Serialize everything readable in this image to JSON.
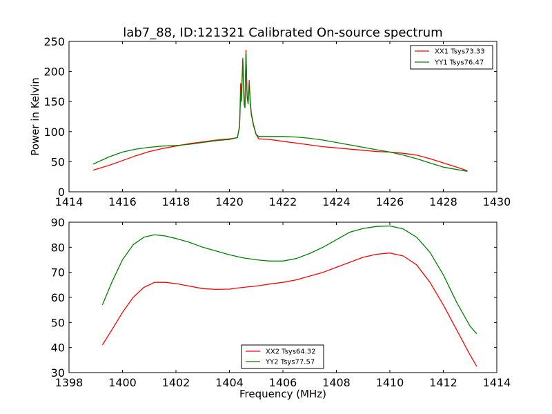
{
  "chart_data": [
    {
      "type": "line",
      "title": "lab7_88, ID:121321 Calibrated On-source spectrum",
      "xlabel": "",
      "ylabel": "Power in Kelvin",
      "xlim": [
        1414,
        1430
      ],
      "ylim": [
        0,
        250
      ],
      "xticks": [
        "1414",
        "1416",
        "1418",
        "1420",
        "1422",
        "1424",
        "1426",
        "1428",
        "1430"
      ],
      "yticks": [
        "0",
        "50",
        "100",
        "150",
        "200",
        "250"
      ],
      "legend": "top-right",
      "series": [
        {
          "name": "XX1 Tsys73.33",
          "color": "#ff0000",
          "x": [
            1414.9,
            1415.5,
            1416.0,
            1416.5,
            1417.0,
            1417.5,
            1418.0,
            1418.5,
            1419.0,
            1419.5,
            1420.0,
            1420.3,
            1420.38,
            1420.42,
            1420.45,
            1420.5,
            1420.55,
            1420.58,
            1420.62,
            1420.66,
            1420.7,
            1420.74,
            1420.78,
            1420.82,
            1420.9,
            1421.0,
            1421.1,
            1421.5,
            1422.0,
            1422.5,
            1423.0,
            1423.5,
            1424.0,
            1424.5,
            1425.0,
            1425.5,
            1426.0,
            1426.5,
            1427.0,
            1427.5,
            1428.0,
            1428.5,
            1428.9
          ],
          "y": [
            36,
            44,
            52,
            60,
            67,
            72,
            76,
            80,
            83,
            86,
            88,
            90,
            110,
            180,
            160,
            222,
            150,
            140,
            235,
            160,
            148,
            185,
            150,
            130,
            112,
            95,
            88,
            87,
            84,
            81,
            78,
            75,
            73,
            71,
            69,
            67,
            66,
            64,
            61,
            55,
            48,
            41,
            35
          ]
        },
        {
          "name": "YY1 Tsys76.47",
          "color": "#008000",
          "x": [
            1414.9,
            1415.5,
            1416.0,
            1416.5,
            1417.0,
            1417.5,
            1418.0,
            1418.5,
            1419.0,
            1419.5,
            1420.0,
            1420.3,
            1420.38,
            1420.42,
            1420.45,
            1420.5,
            1420.55,
            1420.58,
            1420.62,
            1420.66,
            1420.7,
            1420.74,
            1420.78,
            1420.82,
            1420.9,
            1421.0,
            1421.1,
            1421.5,
            1422.0,
            1422.5,
            1423.0,
            1423.5,
            1424.0,
            1424.5,
            1425.0,
            1425.5,
            1426.0,
            1426.5,
            1427.0,
            1427.5,
            1428.0,
            1428.5,
            1428.9
          ],
          "y": [
            46,
            58,
            66,
            71,
            74,
            76,
            77,
            79,
            82,
            85,
            87,
            90,
            108,
            165,
            150,
            218,
            145,
            140,
            230,
            158,
            146,
            180,
            145,
            128,
            110,
            95,
            92,
            92,
            92,
            91,
            89,
            86,
            82,
            78,
            74,
            70,
            66,
            61,
            55,
            48,
            41,
            37,
            34
          ]
        }
      ]
    },
    {
      "type": "line",
      "title": "",
      "xlabel": "Frequency (MHz)",
      "ylabel": "",
      "xlim": [
        1398,
        1414
      ],
      "ylim": [
        30,
        90
      ],
      "xticks": [
        "1398",
        "1400",
        "1402",
        "1404",
        "1406",
        "1408",
        "1410",
        "1412",
        "1414"
      ],
      "yticks": [
        "30",
        "40",
        "50",
        "60",
        "70",
        "80",
        "90"
      ],
      "legend": "bottom-center",
      "series": [
        {
          "name": "XX2 Tsys64.32",
          "color": "#ff0000",
          "x": [
            1399.25,
            1399.6,
            1400.0,
            1400.4,
            1400.8,
            1401.2,
            1401.6,
            1402.0,
            1402.5,
            1403.0,
            1403.5,
            1404.0,
            1404.5,
            1405.0,
            1405.5,
            1406.0,
            1406.5,
            1407.0,
            1407.5,
            1408.0,
            1408.5,
            1409.0,
            1409.5,
            1410.0,
            1410.5,
            1411.0,
            1411.5,
            1412.0,
            1412.5,
            1413.0,
            1413.25
          ],
          "y": [
            41,
            47,
            54,
            60,
            64,
            66,
            66,
            65.5,
            64.5,
            63.5,
            63.2,
            63.3,
            64,
            64.5,
            65.3,
            66,
            67,
            68.5,
            70,
            72,
            74,
            76,
            77.2,
            77.7,
            76.5,
            73,
            66,
            57,
            47,
            37,
            32.5
          ]
        },
        {
          "name": "YY2 Tsys77.57",
          "color": "#008000",
          "x": [
            1399.25,
            1399.6,
            1400.0,
            1400.4,
            1400.8,
            1401.2,
            1401.6,
            1402.0,
            1402.5,
            1403.0,
            1403.5,
            1404.0,
            1404.5,
            1405.0,
            1405.5,
            1406.0,
            1406.5,
            1407.0,
            1407.5,
            1408.0,
            1408.5,
            1409.0,
            1409.5,
            1410.0,
            1410.5,
            1411.0,
            1411.5,
            1412.0,
            1412.5,
            1413.0,
            1413.25
          ],
          "y": [
            57,
            66,
            75,
            81,
            84,
            85,
            84.5,
            83.5,
            82,
            80,
            78.5,
            77,
            75.8,
            75,
            74.5,
            74.5,
            75.5,
            77.5,
            80,
            83,
            86,
            87.5,
            88.3,
            88.5,
            87.3,
            84,
            78,
            69,
            58,
            48.5,
            45.5
          ]
        }
      ]
    }
  ]
}
